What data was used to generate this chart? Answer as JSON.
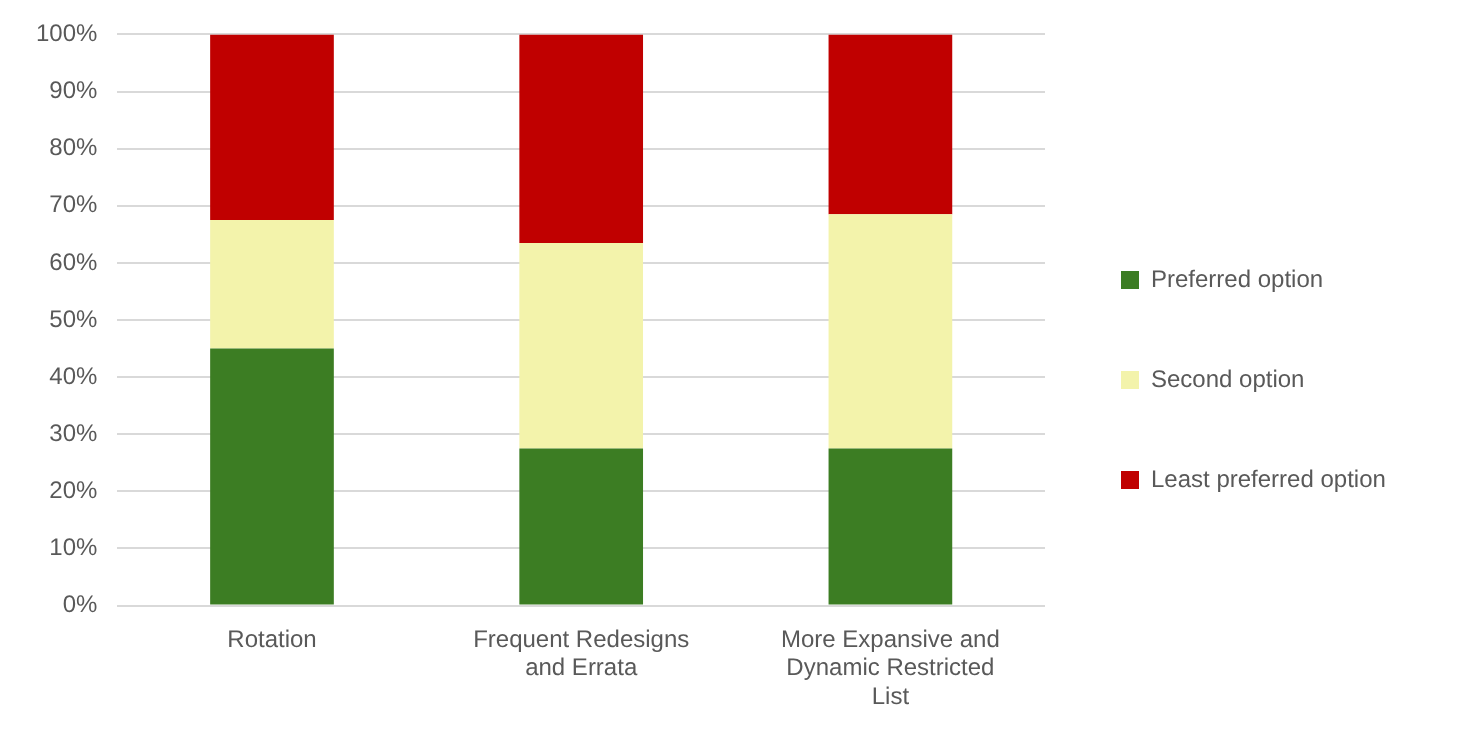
{
  "chart_data": {
    "type": "bar",
    "stacked": true,
    "categories": [
      "Rotation",
      "Frequent Redesigns and Errata",
      "More Expansive and Dynamic Restricted List"
    ],
    "series": [
      {
        "name": "Preferred option",
        "color": "#3c7d23",
        "values": [
          45,
          27.5,
          27.5
        ]
      },
      {
        "name": "Second option",
        "color": "#f3f3ab",
        "values": [
          22.5,
          36,
          41
        ]
      },
      {
        "name": "Least preferred option",
        "color": "#c00000",
        "values": [
          32.5,
          36.5,
          31.5
        ]
      }
    ],
    "ylim": [
      0,
      100
    ],
    "yticks": [
      {
        "value": 0,
        "label": "0%"
      },
      {
        "value": 10,
        "label": "10%"
      },
      {
        "value": 20,
        "label": "20%"
      },
      {
        "value": 30,
        "label": "30%"
      },
      {
        "value": 40,
        "label": "40%"
      },
      {
        "value": 50,
        "label": "50%"
      },
      {
        "value": 60,
        "label": "60%"
      },
      {
        "value": 70,
        "label": "70%"
      },
      {
        "value": 80,
        "label": "80%"
      },
      {
        "value": 90,
        "label": "90%"
      },
      {
        "value": 100,
        "label": "100%"
      }
    ],
    "grid": "y",
    "legend": "right"
  }
}
